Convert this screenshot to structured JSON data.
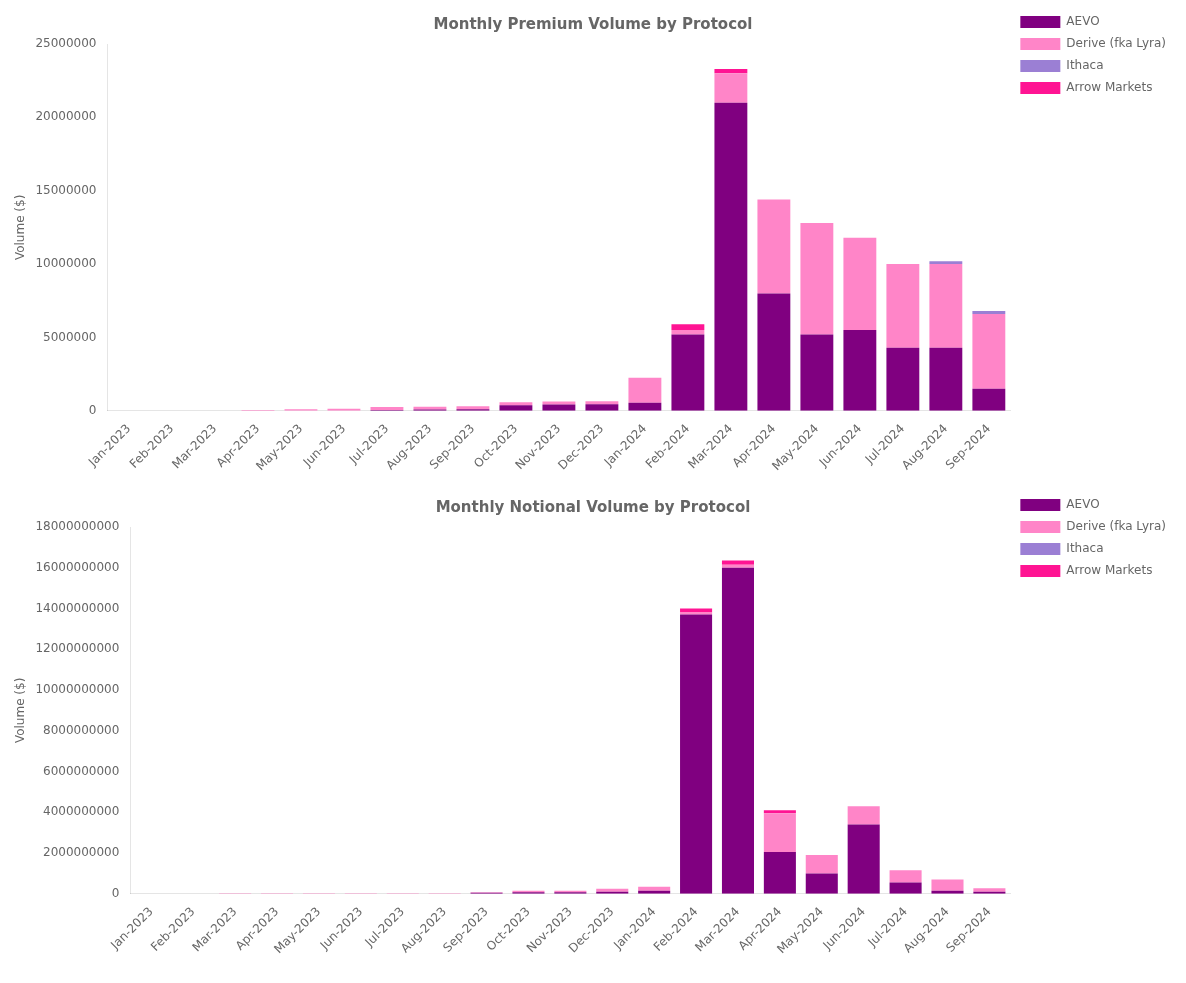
{
  "chart_data": [
    {
      "type": "bar",
      "title": "Monthly Premium Volume by Protocol",
      "ylabel": "Volume ($)",
      "categories": [
        "Jan-2023",
        "Feb-2023",
        "Mar-2023",
        "Apr-2023",
        "May-2023",
        "Jun-2023",
        "Jul-2023",
        "Aug-2023",
        "Sep-2023",
        "Oct-2023",
        "Nov-2023",
        "Dec-2023",
        "Jan-2024",
        "Feb-2024",
        "Mar-2024",
        "Apr-2024",
        "May-2024",
        "Jun-2024",
        "Jul-2024",
        "Aug-2024",
        "Sep-2024"
      ],
      "series": [
        {
          "name": "AEVO",
          "color": "#800080",
          "values": [
            0,
            0,
            0,
            0,
            0,
            0,
            50000,
            80000,
            100000,
            380000,
            430000,
            450000,
            550000,
            5200000,
            21000000,
            8000000,
            5200000,
            5500000,
            4300000,
            4300000,
            1500000
          ]
        },
        {
          "name": "Derive (fka Lyra)",
          "color": "#FF85C8",
          "values": [
            0,
            0,
            0,
            50000,
            100000,
            130000,
            200000,
            200000,
            200000,
            200000,
            200000,
            200000,
            1700000,
            300000,
            2000000,
            6400000,
            7600000,
            6300000,
            5700000,
            5700000,
            5100000
          ]
        },
        {
          "name": "Ithaca",
          "color": "#9B7FD4",
          "values": [
            0,
            0,
            0,
            0,
            0,
            0,
            0,
            0,
            0,
            0,
            0,
            0,
            0,
            0,
            0,
            0,
            0,
            0,
            0,
            200000,
            200000
          ]
        },
        {
          "name": "Arrow Markets",
          "color": "#FF1493",
          "values": [
            0,
            0,
            0,
            0,
            0,
            0,
            0,
            0,
            0,
            0,
            0,
            0,
            0,
            400000,
            300000,
            0,
            0,
            0,
            0,
            0,
            0
          ]
        }
      ],
      "stacked": true,
      "ylim": [
        0,
        25000000
      ],
      "yticks": [
        0,
        5000000,
        10000000,
        15000000,
        20000000,
        25000000
      ],
      "grid": false,
      "legend": "right"
    },
    {
      "type": "bar",
      "title": "Monthly Notional Volume by Protocol",
      "ylabel": "Volume ($)",
      "categories": [
        "Jan-2023",
        "Feb-2023",
        "Mar-2023",
        "Apr-2023",
        "May-2023",
        "Jun-2023",
        "Jul-2023",
        "Aug-2023",
        "Sep-2023",
        "Oct-2023",
        "Nov-2023",
        "Dec-2023",
        "Jan-2024",
        "Feb-2024",
        "Mar-2024",
        "Apr-2024",
        "May-2024",
        "Jun-2024",
        "Jul-2024",
        "Aug-2024",
        "Sep-2024"
      ],
      "series": [
        {
          "name": "AEVO",
          "color": "#800080",
          "values": [
            0,
            0,
            0,
            0,
            0,
            0,
            0,
            0,
            50000000,
            80000000,
            80000000,
            100000000,
            150000000,
            13700000000,
            16000000000,
            2050000000,
            1000000000,
            3400000000,
            550000000,
            150000000,
            100000000
          ]
        },
        {
          "name": "Derive (fka Lyra)",
          "color": "#FF85C8",
          "values": [
            0,
            0,
            30000000,
            30000000,
            30000000,
            30000000,
            30000000,
            30000000,
            30000000,
            70000000,
            70000000,
            150000000,
            200000000,
            100000000,
            150000000,
            1900000000,
            900000000,
            900000000,
            600000000,
            550000000,
            175000000
          ]
        },
        {
          "name": "Ithaca",
          "color": "#9B7FD4",
          "values": [
            0,
            0,
            0,
            0,
            0,
            0,
            0,
            0,
            0,
            0,
            0,
            0,
            0,
            0,
            0,
            0,
            0,
            0,
            0,
            0,
            0
          ]
        },
        {
          "name": "Arrow Markets",
          "color": "#FF1493",
          "values": [
            0,
            0,
            0,
            0,
            0,
            0,
            0,
            0,
            0,
            0,
            0,
            0,
            0,
            200000000,
            200000000,
            150000000,
            0,
            0,
            0,
            0,
            0
          ]
        }
      ],
      "stacked": true,
      "ylim": [
        0,
        18000000000
      ],
      "yticks": [
        0,
        2000000000,
        4000000000,
        6000000000,
        8000000000,
        10000000000,
        12000000000,
        14000000000,
        16000000000,
        18000000000
      ],
      "grid": false,
      "legend": "right"
    }
  ]
}
